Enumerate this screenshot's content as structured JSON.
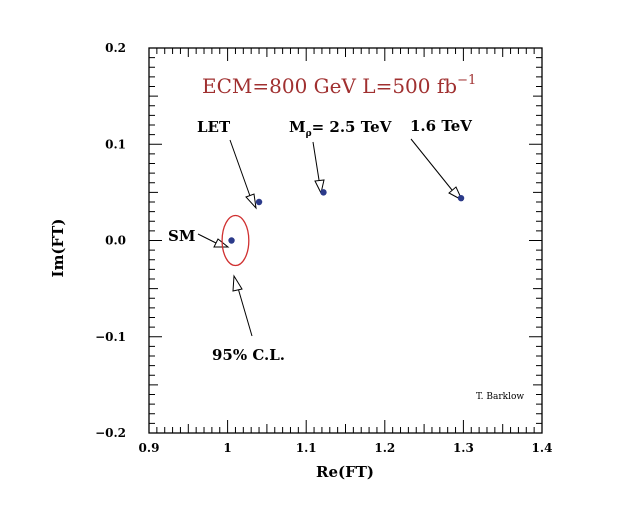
{
  "chart_data": {
    "type": "scatter",
    "xlabel": "Re(FT)",
    "ylabel": "Im(FT)",
    "xlim": [
      0.9,
      1.4
    ],
    "ylim": [
      -0.2,
      0.2
    ],
    "x_ticks": [
      "0.9",
      "1",
      "1.1",
      "1.2",
      "1.3",
      "1.4"
    ],
    "y_ticks": [
      "−0.2",
      "−0.1",
      "0.0",
      "0.1",
      "0.2"
    ],
    "header": {
      "main": "ECM=800 GeV  L=500 fb",
      "sup": "−1"
    },
    "points": [
      {
        "label": "SM",
        "x": 1.005,
        "y": 0.0
      },
      {
        "label": "LET",
        "x": 1.04,
        "y": 0.04
      },
      {
        "label": "Mρ= 2.5 TeV",
        "x": 1.122,
        "y": 0.05
      },
      {
        "label": "1.6 TeV",
        "x": 1.297,
        "y": 0.044
      }
    ],
    "annotations": {
      "sm": "SM",
      "let": "LET",
      "m_sym": "M",
      "m_sub": "ρ",
      "m_value": "= 2.5 TeV",
      "tev16": "1.6 TeV",
      "cl": "95% C.L."
    },
    "contour": {
      "label": "95% C.L.",
      "center_x": 1.01,
      "center_y": 0.0,
      "half_width": 0.017,
      "half_height": 0.026,
      "color": "#d03030"
    },
    "credit": "T. Barklow",
    "marker_color": "#2b3a8a",
    "header_color": "#a03030",
    "grid": false
  }
}
